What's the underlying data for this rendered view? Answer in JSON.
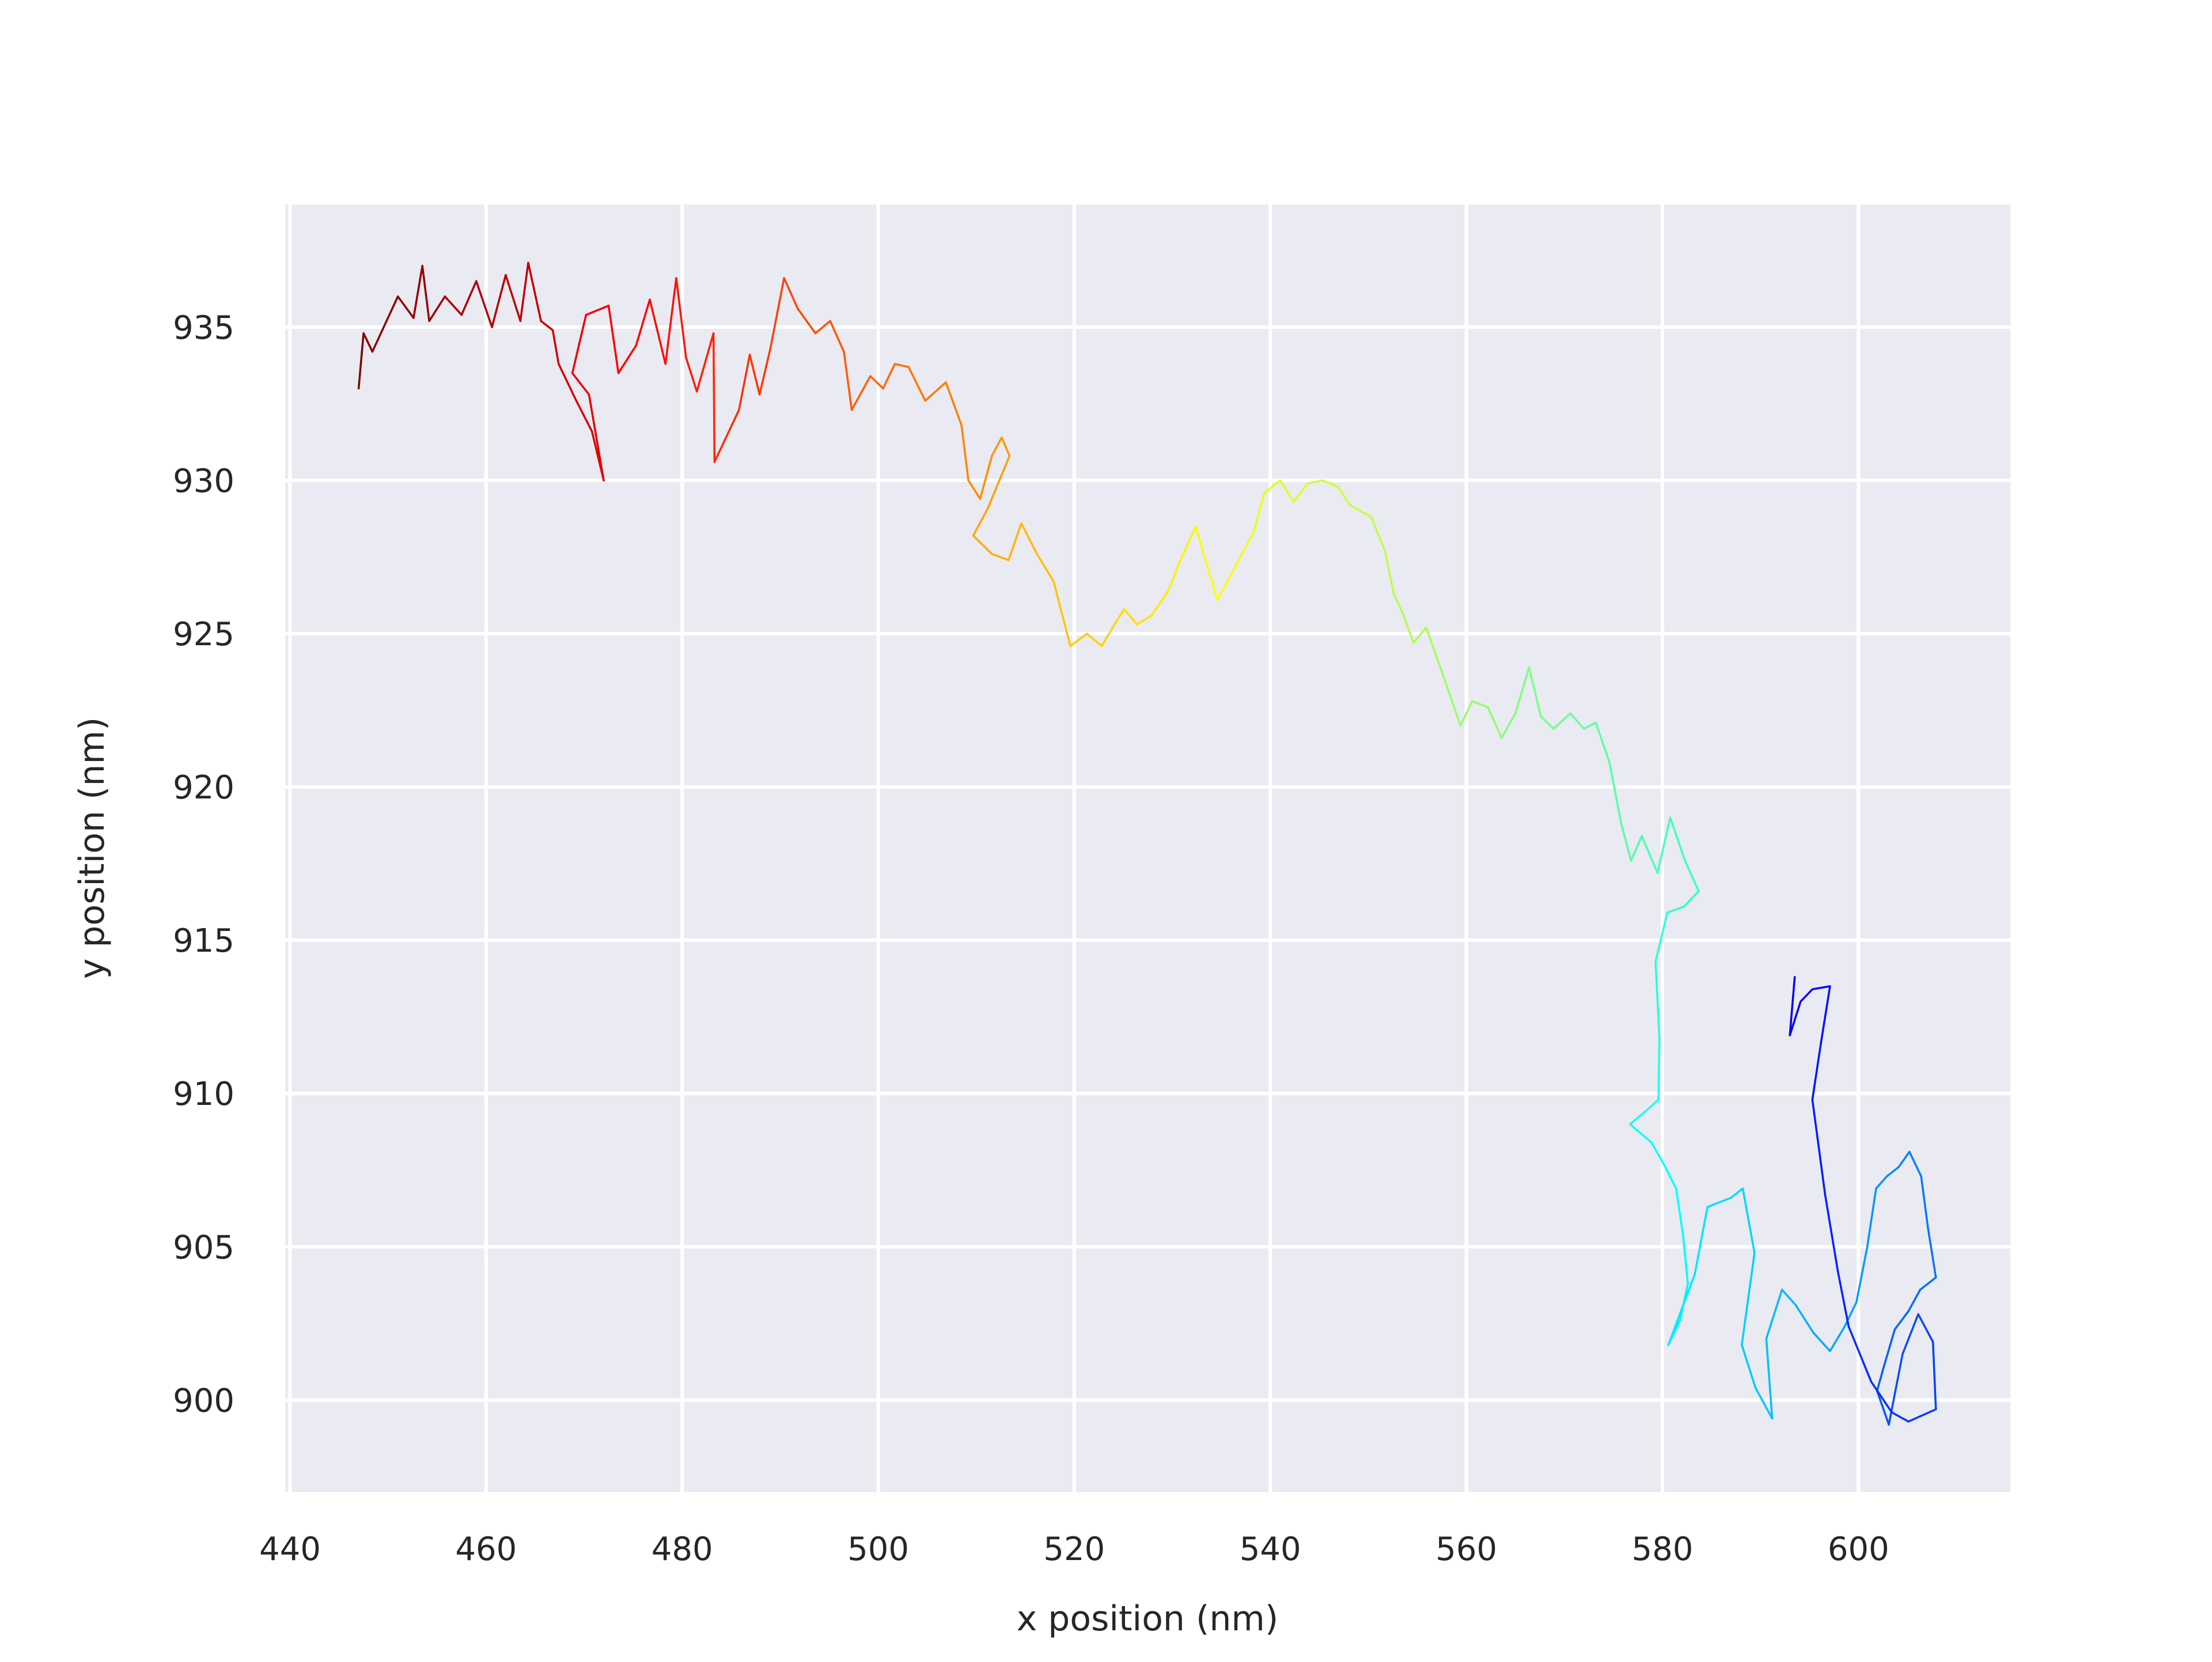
{
  "chart_data": {
    "type": "line",
    "title": "",
    "xlabel": "x position (nm)",
    "ylabel": "y position (nm)",
    "xlim": [
      439.5,
      615.5
    ],
    "ylim": [
      897,
      939
    ],
    "xticks": [
      440,
      460,
      480,
      500,
      520,
      540,
      560,
      580,
      600
    ],
    "yticks": [
      900,
      905,
      910,
      915,
      920,
      925,
      930,
      935
    ],
    "xtick_labels": [
      "440",
      "460",
      "480",
      "500",
      "520",
      "540",
      "560",
      "580",
      "600"
    ],
    "ytick_labels": [
      "900",
      "905",
      "910",
      "915",
      "920",
      "925",
      "930",
      "935"
    ],
    "grid": true,
    "background_color": "#eaeaf2",
    "grid_color": "#ffffff",
    "colormap": "jet (red = start of track, blue = end of track)",
    "series": [
      {
        "points": [
          [
            447.0,
            933.0
          ],
          [
            447.5,
            934.8
          ],
          [
            448.4,
            934.2
          ],
          [
            451.0,
            936.0
          ],
          [
            452.6,
            935.3
          ],
          [
            453.5,
            937.0
          ],
          [
            454.2,
            935.2
          ],
          [
            455.8,
            936.0
          ],
          [
            457.5,
            935.4
          ],
          [
            459.0,
            936.5
          ],
          [
            460.6,
            935.0
          ],
          [
            462.0,
            936.7
          ],
          [
            463.5,
            935.2
          ],
          [
            464.3,
            937.1
          ],
          [
            465.6,
            935.2
          ],
          [
            466.8,
            934.9
          ],
          [
            467.4,
            933.8
          ],
          [
            469.2,
            932.6
          ],
          [
            470.8,
            931.6
          ],
          [
            472.0,
            930.0
          ],
          [
            470.5,
            932.8
          ],
          [
            468.8,
            933.5
          ],
          [
            470.2,
            935.4
          ],
          [
            472.5,
            935.7
          ],
          [
            473.5,
            933.5
          ],
          [
            475.3,
            934.4
          ],
          [
            476.7,
            935.9
          ],
          [
            478.3,
            933.8
          ],
          [
            479.4,
            936.6
          ],
          [
            480.4,
            934.0
          ],
          [
            481.5,
            932.9
          ],
          [
            483.2,
            934.8
          ],
          [
            483.3,
            930.6
          ],
          [
            485.8,
            932.3
          ],
          [
            486.9,
            934.1
          ],
          [
            487.9,
            932.8
          ],
          [
            489.0,
            934.3
          ],
          [
            490.4,
            936.6
          ],
          [
            491.8,
            935.6
          ],
          [
            493.6,
            934.8
          ],
          [
            495.1,
            935.2
          ],
          [
            496.5,
            934.2
          ],
          [
            497.3,
            932.3
          ],
          [
            499.2,
            933.4
          ],
          [
            500.5,
            933.0
          ],
          [
            501.7,
            933.8
          ],
          [
            503.1,
            933.7
          ],
          [
            504.8,
            932.6
          ],
          [
            506.9,
            933.2
          ],
          [
            508.5,
            931.8
          ],
          [
            509.2,
            930.0
          ],
          [
            510.4,
            929.4
          ],
          [
            511.6,
            930.8
          ],
          [
            512.6,
            931.4
          ],
          [
            513.4,
            930.8
          ],
          [
            511.2,
            929.1
          ],
          [
            509.7,
            928.2
          ],
          [
            511.6,
            927.6
          ],
          [
            513.3,
            927.4
          ],
          [
            514.6,
            928.6
          ],
          [
            516.2,
            927.6
          ],
          [
            517.9,
            926.7
          ],
          [
            519.6,
            924.6
          ],
          [
            521.3,
            925.0
          ],
          [
            522.8,
            924.6
          ],
          [
            524.3,
            925.4
          ],
          [
            525.1,
            925.8
          ],
          [
            526.4,
            925.3
          ],
          [
            527.9,
            925.6
          ],
          [
            529.6,
            926.4
          ],
          [
            530.7,
            927.3
          ],
          [
            532.4,
            928.5
          ],
          [
            533.2,
            927.6
          ],
          [
            534.6,
            926.1
          ],
          [
            535.8,
            926.8
          ],
          [
            537.1,
            927.6
          ],
          [
            538.3,
            928.3
          ],
          [
            539.4,
            929.6
          ],
          [
            541.0,
            930.0
          ],
          [
            542.4,
            929.3
          ],
          [
            543.8,
            929.9
          ],
          [
            545.3,
            930.0
          ],
          [
            546.9,
            929.8
          ],
          [
            548.1,
            929.2
          ],
          [
            550.3,
            928.8
          ],
          [
            551.7,
            927.7
          ],
          [
            552.6,
            926.3
          ],
          [
            553.6,
            925.6
          ],
          [
            554.6,
            924.7
          ],
          [
            555.9,
            925.2
          ],
          [
            556.9,
            924.3
          ],
          [
            558.0,
            923.3
          ],
          [
            559.4,
            922.0
          ],
          [
            560.6,
            922.8
          ],
          [
            562.2,
            922.6
          ],
          [
            563.6,
            921.6
          ],
          [
            565.0,
            922.4
          ],
          [
            566.4,
            923.9
          ],
          [
            567.6,
            922.3
          ],
          [
            568.9,
            921.9
          ],
          [
            570.6,
            922.4
          ],
          [
            572.0,
            921.9
          ],
          [
            573.2,
            922.1
          ],
          [
            574.6,
            920.8
          ],
          [
            575.8,
            918.8
          ],
          [
            576.8,
            917.6
          ],
          [
            577.9,
            918.4
          ],
          [
            579.5,
            917.2
          ],
          [
            580.8,
            919.0
          ],
          [
            582.3,
            917.6
          ],
          [
            583.7,
            916.6
          ],
          [
            582.2,
            916.1
          ],
          [
            580.5,
            915.9
          ],
          [
            579.3,
            914.3
          ],
          [
            579.7,
            911.8
          ],
          [
            579.6,
            909.8
          ],
          [
            578.2,
            909.4
          ],
          [
            576.7,
            909.0
          ],
          [
            578.9,
            908.4
          ],
          [
            580.3,
            907.6
          ],
          [
            581.4,
            906.9
          ],
          [
            582.1,
            905.4
          ],
          [
            582.6,
            903.8
          ],
          [
            581.8,
            902.6
          ],
          [
            580.6,
            901.8
          ],
          [
            583.3,
            904.1
          ],
          [
            584.6,
            906.3
          ],
          [
            587.0,
            906.6
          ],
          [
            588.2,
            906.9
          ],
          [
            589.4,
            904.8
          ],
          [
            588.1,
            901.8
          ],
          [
            589.5,
            900.4
          ],
          [
            591.2,
            899.4
          ],
          [
            590.6,
            902.0
          ],
          [
            592.2,
            903.6
          ],
          [
            593.6,
            903.1
          ],
          [
            595.4,
            902.2
          ],
          [
            597.1,
            901.6
          ],
          [
            598.6,
            902.4
          ],
          [
            599.8,
            903.2
          ],
          [
            600.9,
            905.0
          ],
          [
            601.8,
            906.9
          ],
          [
            602.9,
            907.3
          ],
          [
            604.1,
            907.6
          ],
          [
            605.2,
            908.1
          ],
          [
            606.4,
            907.3
          ],
          [
            607.1,
            905.6
          ],
          [
            607.9,
            904.0
          ],
          [
            606.3,
            903.6
          ],
          [
            605.1,
            902.9
          ],
          [
            603.7,
            902.3
          ],
          [
            602.6,
            901.1
          ],
          [
            601.9,
            900.3
          ],
          [
            603.1,
            899.2
          ],
          [
            604.5,
            901.5
          ],
          [
            606.1,
            902.8
          ],
          [
            607.6,
            901.9
          ],
          [
            607.9,
            899.7
          ],
          [
            605.1,
            899.3
          ],
          [
            603.4,
            899.6
          ],
          [
            601.3,
            900.6
          ],
          [
            599.0,
            902.4
          ],
          [
            597.9,
            904.2
          ],
          [
            596.6,
            906.7
          ],
          [
            595.3,
            909.8
          ],
          [
            596.2,
            911.7
          ],
          [
            597.1,
            913.5
          ],
          [
            595.3,
            913.4
          ],
          [
            594.1,
            913.0
          ],
          [
            593.0,
            911.9
          ],
          [
            593.5,
            913.8
          ]
        ]
      }
    ]
  }
}
